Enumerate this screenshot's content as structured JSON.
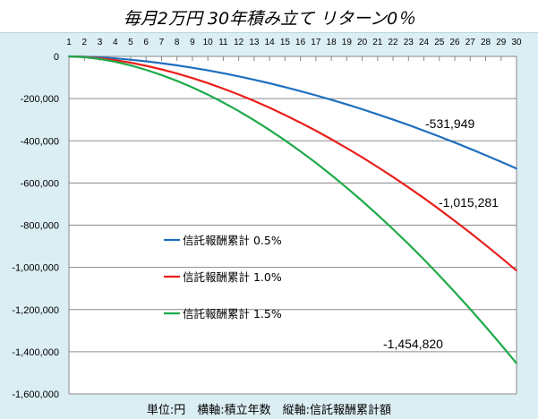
{
  "chart_data": {
    "type": "line",
    "title": "毎月2万円  30年積み立て  リターン0％",
    "caption": "単位:円　横軸:積立年数　縦軸:信託報酬累計額",
    "xlabel": "積立年数",
    "ylabel": "信託報酬累計額",
    "x": [
      1,
      2,
      3,
      4,
      5,
      6,
      7,
      8,
      9,
      10,
      11,
      12,
      13,
      14,
      15,
      16,
      17,
      18,
      19,
      20,
      21,
      22,
      23,
      24,
      25,
      26,
      27,
      28,
      29,
      30
    ],
    "ylim": [
      -1600000,
      0
    ],
    "yticks": [
      0,
      -200000,
      -400000,
      -600000,
      -800000,
      -1000000,
      -1200000,
      -1400000,
      -1600000
    ],
    "ytick_labels": [
      "0",
      "-200,000",
      "-400,000",
      "-600,000",
      "-800,000",
      "-1,000,000",
      "-1,200,000",
      "-1,400,000",
      "-1,600,000"
    ],
    "grid": true,
    "legend_placement": "center-left",
    "series": [
      {
        "name": "信託報酬累計 0.5%",
        "color": "#1f6fbf",
        "end_label": "-531,949",
        "values": [
          0,
          -1325,
          -4559,
          -9378,
          -15650,
          -23284,
          -32220,
          -42375,
          -53727,
          -66280,
          -79952,
          -94740,
          -110590,
          -127510,
          -145540,
          -164530,
          -184590,
          -205600,
          -227620,
          -250600,
          -274540,
          -299430,
          -325290,
          -352100,
          -379870,
          -408430,
          -437950,
          -468440,
          -499770,
          -531949
        ]
      },
      {
        "name": "信託報酬累計 1.0%",
        "color": "#e8201c",
        "end_label": "-1,015,281",
        "values": [
          0,
          -2528,
          -8701,
          -17899,
          -29870,
          -44439,
          -61496,
          -80877,
          -102540,
          -126510,
          -152600,
          -180820,
          -211080,
          -243360,
          -277780,
          -314030,
          -352300,
          -392410,
          -434440,
          -478300,
          -523990,
          -571500,
          -620850,
          -672010,
          -725010,
          -779530,
          -835880,
          -894060,
          -953860,
          -1015281
        ]
      },
      {
        "name": "信託報酬累計 1.5%",
        "color": "#1eaa4a",
        "end_label": "-1,454,820",
        "values": [
          0,
          -3623,
          -12468,
          -25648,
          -42801,
          -63677,
          -88118,
          -115890,
          -146940,
          -181270,
          -218660,
          -259100,
          -302460,
          -348720,
          -398040,
          -449970,
          -504820,
          -562290,
          -622520,
          -685370,
          -750830,
          -818920,
          -889630,
          -962950,
          -1038900,
          -1117000,
          -1197800,
          -1281100,
          -1366800,
          -1454820
        ]
      }
    ]
  }
}
